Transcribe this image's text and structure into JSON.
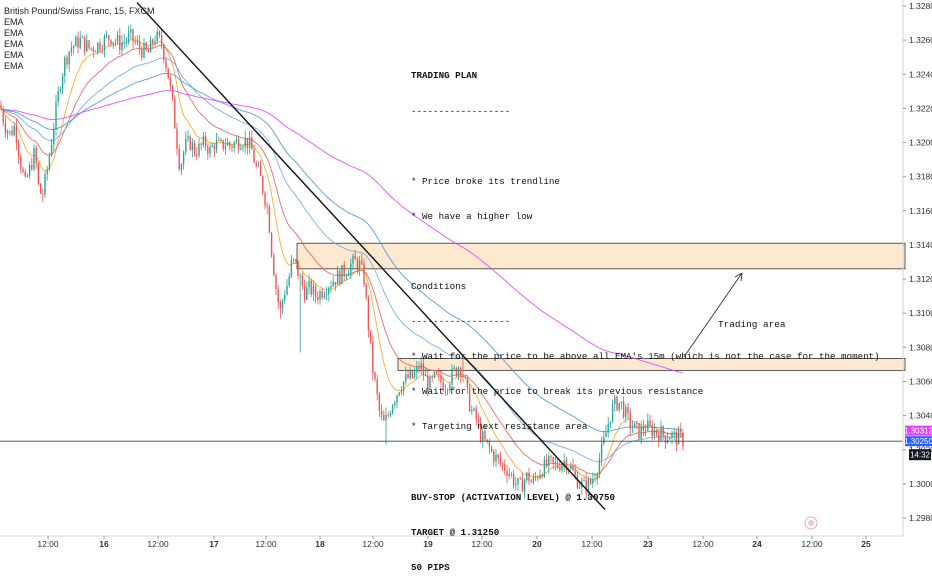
{
  "legend": {
    "symbol": "British Pound/Swiss Franc, 15, FXCM",
    "indicators": [
      "EMA",
      "EMA",
      "EMA",
      "EMA",
      "EMA"
    ]
  },
  "trading_plan": {
    "title": "TRADING PLAN",
    "divider": "------------------",
    "points": [
      "* Price broke its trendline",
      "* We have a higher low"
    ],
    "conditions_title": "Conditions",
    "conditions": [
      "* Wait for the price to be above all EMA's 15m (which is not the case for the moment)",
      "* Wait for the price to break its previous resistance",
      "* Targeting next resistance area"
    ],
    "order": "BUY-STOP (ACTIVATION LEVEL) @ 1.30750",
    "target": "TARGET @ 1.31250",
    "pips": "50 PIPS"
  },
  "annotation": {
    "trading_area": "Trading area"
  },
  "price_badges": {
    "price_a": "1.30312",
    "price_b": "1.30250",
    "countdown": "14:32"
  },
  "colors": {
    "up": "#26a69a",
    "down": "#ef5350",
    "zone_fill": "#fde9cf",
    "zone_border": "#333333",
    "ema1": "#f5a623",
    "ema2": "#e06060",
    "ema3": "#4a90d9",
    "ema4": "#e040fb",
    "badge_pink": "#e040fb",
    "badge_blue": "#2962ff"
  },
  "chart_data": {
    "type": "candlestick",
    "symbol": "British Pound/Swiss Franc",
    "timeframe": "15",
    "x_ticks": [
      "12:00",
      "16",
      "12:00",
      "17",
      "12:00",
      "18",
      "12:00",
      "19",
      "12:00",
      "20",
      "12:00",
      "23",
      "12:00",
      "24",
      "12:00",
      "25"
    ],
    "y_ticks": [
      "1.32800",
      "1.32600",
      "1.32400",
      "1.32200",
      "1.32000",
      "1.31800",
      "1.31600",
      "1.31400",
      "1.31200",
      "1.31000",
      "1.30800",
      "1.30600",
      "1.30400",
      "1.30200",
      "1.30000",
      "1.29800"
    ],
    "ylim": [
      1.2975,
      1.3282
    ],
    "price_path": [
      [
        0,
        1.3222
      ],
      [
        5,
        1.321
      ],
      [
        10,
        1.3205
      ],
      [
        15,
        1.321
      ],
      [
        20,
        1.319
      ],
      [
        25,
        1.3175
      ],
      [
        30,
        1.3185
      ],
      [
        35,
        1.3195
      ],
      [
        38,
        1.3175
      ],
      [
        42,
        1.3168
      ],
      [
        46,
        1.318
      ],
      [
        50,
        1.3195
      ],
      [
        55,
        1.3215
      ],
      [
        60,
        1.3235
      ],
      [
        65,
        1.3248
      ],
      [
        70,
        1.3255
      ],
      [
        80,
        1.326
      ],
      [
        90,
        1.3255
      ],
      [
        100,
        1.3258
      ],
      [
        110,
        1.3262
      ],
      [
        120,
        1.3258
      ],
      [
        130,
        1.3262
      ],
      [
        140,
        1.3255
      ],
      [
        148,
        1.3252
      ],
      [
        155,
        1.3262
      ],
      [
        162,
        1.3258
      ],
      [
        168,
        1.324
      ],
      [
        172,
        1.3225
      ],
      [
        176,
        1.3205
      ],
      [
        180,
        1.3185
      ],
      [
        185,
        1.3198
      ],
      [
        190,
        1.32
      ],
      [
        195,
        1.3195
      ],
      [
        200,
        1.3197
      ],
      [
        205,
        1.32
      ],
      [
        210,
        1.3195
      ],
      [
        215,
        1.32
      ],
      [
        220,
        1.3197
      ],
      [
        225,
        1.32
      ],
      [
        230,
        1.3198
      ],
      [
        236,
        1.32
      ],
      [
        242,
        1.3202
      ],
      [
        248,
        1.32
      ],
      [
        252,
        1.3195
      ],
      [
        256,
        1.3185
      ],
      [
        260,
        1.318
      ],
      [
        264,
        1.317
      ],
      [
        268,
        1.316
      ],
      [
        272,
        1.3135
      ],
      [
        276,
        1.3115
      ],
      [
        280,
        1.31
      ],
      [
        284,
        1.3112
      ],
      [
        288,
        1.3118
      ],
      [
        292,
        1.313
      ],
      [
        296,
        1.3128
      ],
      [
        300,
        1.312
      ],
      [
        305,
        1.3112
      ],
      [
        310,
        1.3115
      ],
      [
        315,
        1.311
      ],
      [
        320,
        1.3112
      ],
      [
        325,
        1.3115
      ],
      [
        330,
        1.3118
      ],
      [
        335,
        1.312
      ],
      [
        340,
        1.3122
      ],
      [
        345,
        1.3125
      ],
      [
        350,
        1.3128
      ],
      [
        355,
        1.313
      ],
      [
        360,
        1.3128
      ],
      [
        364,
        1.312
      ],
      [
        368,
        1.3095
      ],
      [
        372,
        1.307
      ],
      [
        376,
        1.3055
      ],
      [
        380,
        1.304
      ],
      [
        384,
        1.3035
      ],
      [
        388,
        1.304
      ],
      [
        392,
        1.3048
      ],
      [
        396,
        1.3052
      ],
      [
        400,
        1.3058
      ],
      [
        404,
        1.306
      ],
      [
        408,
        1.3062
      ],
      [
        412,
        1.3062
      ],
      [
        416,
        1.3065
      ],
      [
        420,
        1.307
      ],
      [
        425,
        1.3062
      ],
      [
        430,
        1.3058
      ],
      [
        435,
        1.3062
      ],
      [
        440,
        1.306
      ],
      [
        445,
        1.3058
      ],
      [
        450,
        1.3062
      ],
      [
        455,
        1.3066
      ],
      [
        460,
        1.307
      ],
      [
        464,
        1.3062
      ],
      [
        468,
        1.305
      ],
      [
        472,
        1.3042
      ],
      [
        476,
        1.3038
      ],
      [
        480,
        1.303
      ],
      [
        484,
        1.3025
      ],
      [
        488,
        1.3022
      ],
      [
        492,
        1.3018
      ],
      [
        496,
        1.3015
      ],
      [
        500,
        1.3012
      ],
      [
        504,
        1.301
      ],
      [
        508,
        1.3008
      ],
      [
        512,
        1.3004
      ],
      [
        516,
        1.3
      ],
      [
        520,
        1.2998
      ],
      [
        524,
        1.3002
      ],
      [
        528,
        1.3005
      ],
      [
        532,
        1.3
      ],
      [
        536,
        1.3004
      ],
      [
        540,
        1.3008
      ],
      [
        545,
        1.301
      ],
      [
        550,
        1.3012
      ],
      [
        555,
        1.301
      ],
      [
        560,
        1.3012
      ],
      [
        565,
        1.3014
      ],
      [
        570,
        1.301
      ],
      [
        575,
        1.3004
      ],
      [
        580,
        1.3
      ],
      [
        585,
        1.2998
      ],
      [
        590,
        1.3
      ],
      [
        594,
        1.3005
      ],
      [
        598,
        1.3012
      ],
      [
        602,
        1.302
      ],
      [
        606,
        1.303
      ],
      [
        610,
        1.304
      ],
      [
        614,
        1.3046
      ],
      [
        618,
        1.3048
      ],
      [
        622,
        1.3046
      ],
      [
        626,
        1.304
      ],
      [
        630,
        1.3035
      ],
      [
        635,
        1.3032
      ],
      [
        640,
        1.303
      ],
      [
        645,
        1.3034
      ],
      [
        650,
        1.3032
      ],
      [
        655,
        1.3031
      ],
      [
        660,
        1.303
      ],
      [
        665,
        1.3028
      ],
      [
        670,
        1.3029
      ],
      [
        675,
        1.3027
      ],
      [
        680,
        1.3027
      ],
      [
        684,
        1.3025
      ]
    ],
    "trendline": {
      "from": [
        137,
        1.3282
      ],
      "to": [
        605,
        1.2985
      ]
    },
    "zones": [
      {
        "label": "resistance area",
        "from_x": 297,
        "to_x": 905,
        "top": 1.3141,
        "bottom": 1.3126
      },
      {
        "label": "previous resistance",
        "from_x": 398,
        "to_x": 905,
        "top": 1.30735,
        "bottom": 1.30665
      }
    ],
    "horizontal_line": 1.3025
  }
}
